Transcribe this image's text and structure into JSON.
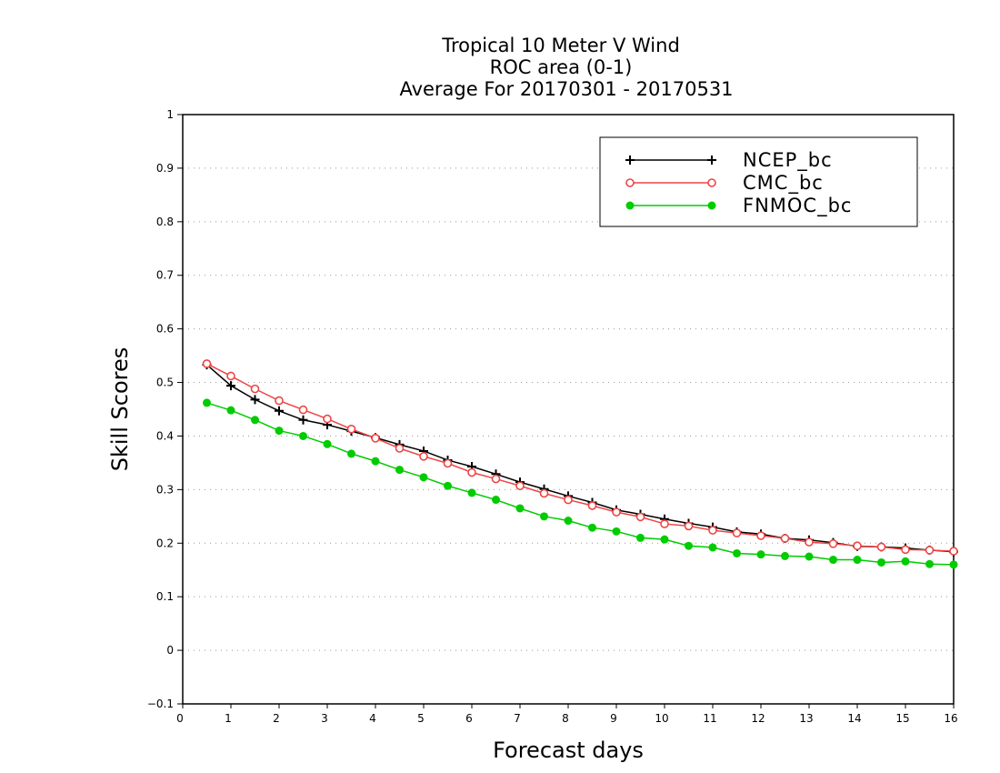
{
  "chart_data": {
    "type": "line",
    "title_lines": [
      "Tropical 10 Meter V Wind",
      "ROC area (0-1)",
      "Average For 20170301 - 20170531"
    ],
    "xlabel": "Forecast days",
    "ylabel": "Skill Scores",
    "xlim": [
      0,
      16
    ],
    "ylim": [
      -0.1,
      1
    ],
    "xticks": [
      "0",
      "1",
      "2",
      "3",
      "4",
      "5",
      "6",
      "7",
      "8",
      "9",
      "10",
      "11",
      "12",
      "13",
      "14",
      "15",
      "16"
    ],
    "yticks": [
      "-0.1",
      "0",
      "0.1",
      "0.2",
      "0.3",
      "0.4",
      "0.5",
      "0.6",
      "0.7",
      "0.8",
      "0.9",
      "1"
    ],
    "grid": "horizontal dotted",
    "legend_position": "top-right",
    "x": [
      0.5,
      1,
      1.5,
      2,
      2.5,
      3,
      3.5,
      4,
      4.5,
      5,
      5.5,
      6,
      6.5,
      7,
      7.5,
      8,
      8.5,
      9,
      9.5,
      10,
      10.5,
      11,
      11.5,
      12,
      12.5,
      13,
      13.5,
      14,
      14.5,
      15,
      15.5,
      16
    ],
    "series": [
      {
        "name": "NCEP_bc",
        "color": "#000000",
        "marker": "plus",
        "values": [
          0.533,
          0.494,
          0.468,
          0.447,
          0.43,
          0.421,
          0.409,
          0.397,
          0.384,
          0.372,
          0.355,
          0.343,
          0.329,
          0.314,
          0.301,
          0.288,
          0.276,
          0.262,
          0.254,
          0.245,
          0.237,
          0.23,
          0.221,
          0.217,
          0.209,
          0.206,
          0.201,
          0.194,
          0.193,
          0.191,
          0.187,
          0.184
        ]
      },
      {
        "name": "CMC_bc",
        "color": "#ee4444",
        "marker": "open-circle",
        "values": [
          0.535,
          0.512,
          0.488,
          0.466,
          0.449,
          0.432,
          0.413,
          0.396,
          0.377,
          0.362,
          0.349,
          0.332,
          0.32,
          0.307,
          0.293,
          0.281,
          0.27,
          0.258,
          0.249,
          0.236,
          0.232,
          0.224,
          0.219,
          0.214,
          0.209,
          0.202,
          0.199,
          0.195,
          0.193,
          0.188,
          0.187,
          0.185
        ]
      },
      {
        "name": "FNMOC_bc",
        "color": "#00cc00",
        "marker": "filled-circle",
        "values": [
          0.462,
          0.448,
          0.43,
          0.41,
          0.4,
          0.385,
          0.367,
          0.353,
          0.337,
          0.323,
          0.307,
          0.294,
          0.281,
          0.265,
          0.25,
          0.242,
          0.229,
          0.222,
          0.21,
          0.207,
          0.195,
          0.192,
          0.181,
          0.179,
          0.176,
          0.175,
          0.169,
          0.169,
          0.164,
          0.166,
          0.161,
          0.16
        ]
      }
    ]
  }
}
